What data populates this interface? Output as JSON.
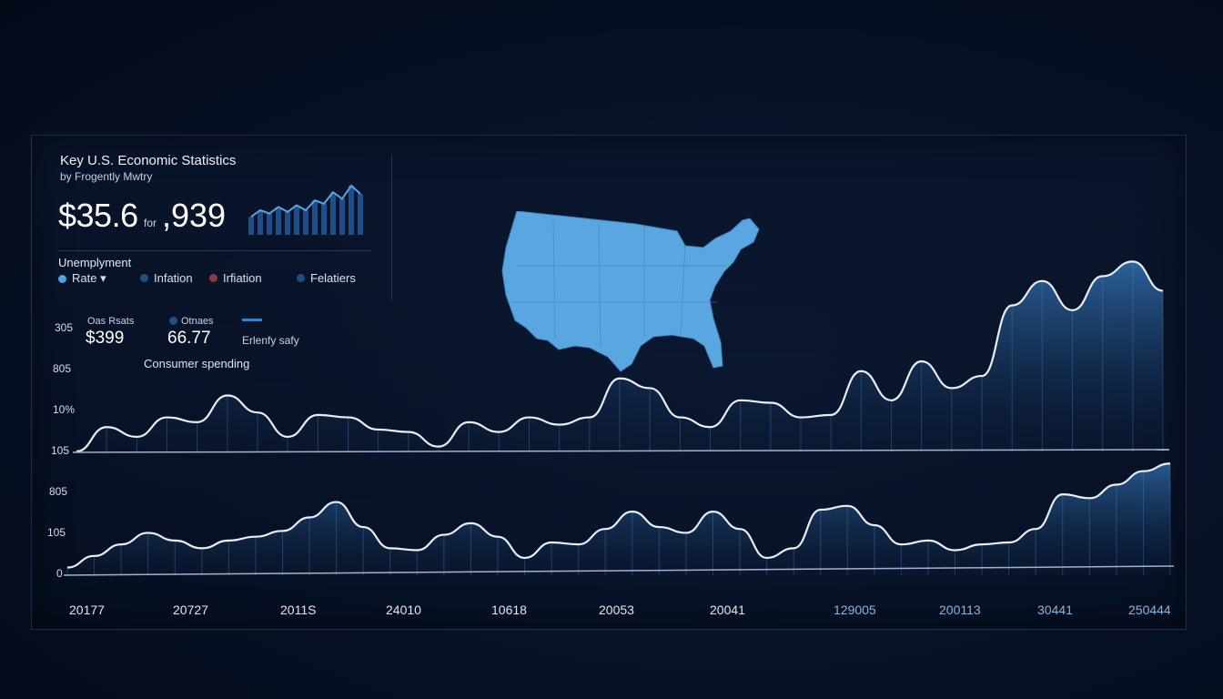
{
  "header": {
    "title": "Key U.S. Economic Statistics",
    "subtitle": "by Frogently Mwtry",
    "big_value": "$35.6",
    "big_mid": "for",
    "big_value2": ",939",
    "unemployment_label": "Unemplyment"
  },
  "legend": {
    "items": [
      {
        "label": "Rate ▾",
        "color": "#4aa8e0"
      },
      {
        "label": "Infation",
        "color": "#1e4f86"
      },
      {
        "label": "Irfiation",
        "color": "#8a3a45"
      },
      {
        "label": "Felatiers",
        "color": "#1e4f86"
      }
    ]
  },
  "stats": {
    "one_label": "Oas Rsats",
    "one_value": "$399",
    "two_label": "Otnaes",
    "two_value": "66.77",
    "three_label": "Erlenfy safy",
    "consumer_label": "Consumer spending"
  },
  "colors": {
    "line": "#e8eef7",
    "fill_top": "#2f6aa8",
    "fill_bottom": "#0b1f3d",
    "map": "#5aa6e0",
    "accent": "#3d82c9"
  },
  "chart_data": [
    {
      "type": "area",
      "name": "upper",
      "yticks": [
        "305",
        "805",
        "10%",
        "105"
      ],
      "x_labels": [
        "20177",
        "20727",
        "2011S",
        "24010",
        "10618",
        "20053",
        "20041",
        "129005",
        "200113",
        "30441",
        "250444"
      ],
      "values": [
        0,
        10,
        6,
        14,
        12,
        23,
        16,
        6,
        15,
        14,
        9,
        8,
        2,
        12,
        8,
        14,
        11,
        14,
        30,
        26,
        14,
        10,
        21,
        20,
        14,
        15,
        33,
        21,
        37,
        26,
        31,
        60,
        70,
        58,
        72,
        78,
        66
      ]
    },
    {
      "type": "area",
      "name": "lower",
      "yticks": [
        "805",
        "105",
        "0"
      ],
      "values": [
        4,
        10,
        16,
        22,
        18,
        14,
        18,
        20,
        23,
        30,
        38,
        25,
        14,
        13,
        21,
        27,
        20,
        9,
        17,
        16,
        24,
        33,
        25,
        22,
        33,
        24,
        9,
        14,
        34,
        36,
        26,
        16,
        18,
        13,
        16,
        17,
        24,
        42,
        40,
        47,
        54,
        58
      ]
    }
  ],
  "spark_data": {
    "values": [
      22,
      30,
      26,
      34,
      28,
      36,
      30,
      42,
      38,
      52,
      44,
      60,
      50
    ]
  }
}
